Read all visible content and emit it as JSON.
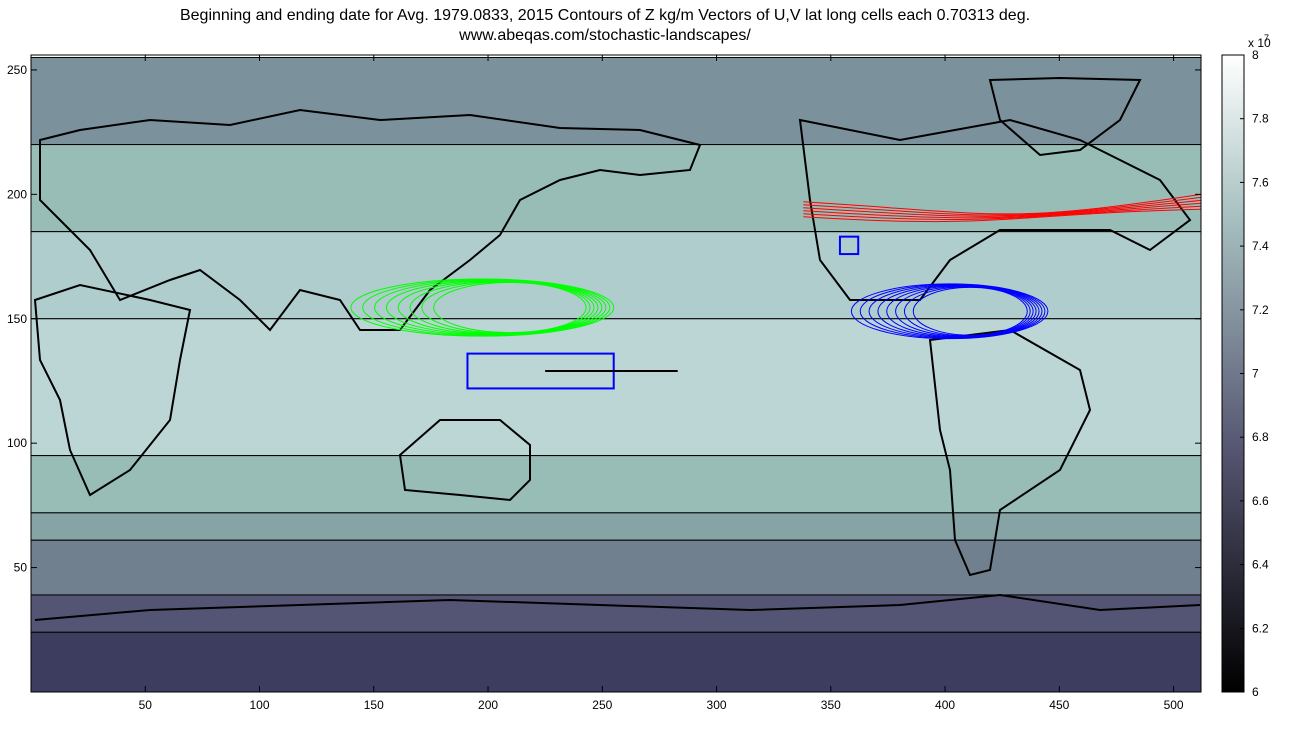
{
  "chart_data": {
    "type": "heatmap",
    "title": "Beginning and ending date for Avg.  1979.0833, 2015 Contours of Z kg/m  Vectors of U,V  lat long cells each 0.70313 deg.",
    "subtitle": "www.abeqas.com/stochastic-landscapes/",
    "xlabel": "",
    "ylabel": "",
    "xlim": [
      0,
      512
    ],
    "ylim": [
      0,
      256
    ],
    "x_ticks": [
      50,
      100,
      150,
      200,
      250,
      300,
      350,
      400,
      450,
      500
    ],
    "y_ticks": [
      50,
      100,
      150,
      200,
      250
    ],
    "colorbar": {
      "range": [
        6.0,
        8.0
      ],
      "ticks": [
        6,
        6.2,
        6.4,
        6.6,
        6.8,
        7,
        7.2,
        7.4,
        7.6,
        7.8,
        8
      ],
      "exponent_label": "x 10",
      "exponent": "7",
      "colormap": "bone"
    },
    "contour_bands": [
      {
        "y_from": 255,
        "y_to": 220,
        "value": 7.1
      },
      {
        "y_from": 220,
        "y_to": 185,
        "value": 7.35
      },
      {
        "y_from": 185,
        "y_to": 150,
        "value": 7.55
      },
      {
        "y_from": 150,
        "y_to": 95,
        "value": 7.62
      },
      {
        "y_from": 95,
        "y_to": 72,
        "value": 7.35
      },
      {
        "y_from": 72,
        "y_to": 61,
        "value": 7.2
      },
      {
        "y_from": 61,
        "y_to": 39,
        "value": 7.0
      },
      {
        "y_from": 39,
        "y_to": 24,
        "value": 6.75
      },
      {
        "y_from": 24,
        "y_to": 0,
        "value": 6.55
      }
    ],
    "overlays": {
      "green_loops": {
        "x": [
          140,
          255
        ],
        "y": [
          143,
          166
        ],
        "color": "#00ff00"
      },
      "red_loops": {
        "x": [
          338,
          512
        ],
        "y": [
          184,
          200
        ],
        "color": "#ff0000"
      },
      "blue_loops": {
        "x": [
          359,
          445
        ],
        "y": [
          142,
          164
        ],
        "color": "#0000ff"
      },
      "blue_box_large": {
        "x": [
          191,
          255
        ],
        "y": [
          122,
          136
        ],
        "color": "#0000ff"
      },
      "blue_box_small": {
        "x": [
          354,
          362
        ],
        "y": [
          176,
          183
        ],
        "color": "#0000ff"
      },
      "black_line": {
        "x": [
          225,
          283
        ],
        "y": 129,
        "color": "#000000"
      }
    }
  }
}
